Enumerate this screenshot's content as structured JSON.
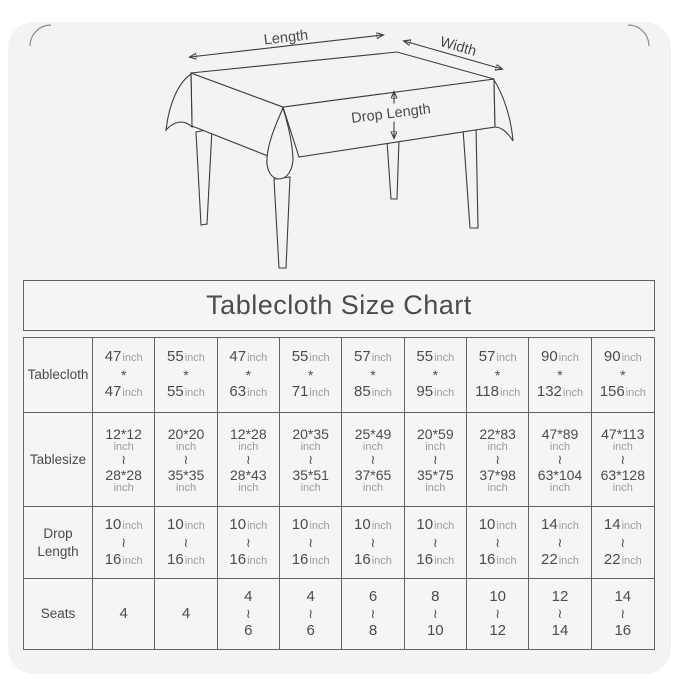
{
  "diagram": {
    "length_label": "Length",
    "width_label": "Width",
    "drop_label": "Drop Length"
  },
  "chart_data": {
    "type": "table",
    "title": "Tablecloth Size Chart",
    "row_headers": [
      "Tablecloth",
      "Tablesize",
      "Drop Length",
      "Seats"
    ],
    "rows": [
      {
        "header": "Tablecloth",
        "unit_style": "inline",
        "cells": [
          [
            "47inch",
            "*",
            "47inch"
          ],
          [
            "55inch",
            "*",
            "55inch"
          ],
          [
            "47inch",
            "*",
            "63inch"
          ],
          [
            "55inch",
            "*",
            "71inch"
          ],
          [
            "57inch",
            "*",
            "85inch"
          ],
          [
            "55inch",
            "*",
            "95inch"
          ],
          [
            "57inch",
            "*",
            "118inch"
          ],
          [
            "90inch",
            "*",
            "132inch"
          ],
          [
            "90inch",
            "*",
            "156inch"
          ]
        ]
      },
      {
        "header": "Tablesize",
        "unit_style": "below",
        "cells": [
          [
            "12*12inch",
            "~",
            "28*28inch"
          ],
          [
            "20*20inch",
            "~",
            "35*35inch"
          ],
          [
            "12*28inch",
            "~",
            "28*43inch"
          ],
          [
            "20*35inch",
            "~",
            "35*51inch"
          ],
          [
            "25*49inch",
            "~",
            "37*65inch"
          ],
          [
            "20*59inch",
            "~",
            "35*75inch"
          ],
          [
            "22*83inch",
            "~",
            "37*98inch"
          ],
          [
            "47*89inch",
            "~",
            "63*104inch"
          ],
          [
            "47*113inch",
            "~",
            "63*128inch"
          ]
        ]
      },
      {
        "header": "Drop Length",
        "unit_style": "inline",
        "cells": [
          [
            "10inch",
            "~",
            "16inch"
          ],
          [
            "10inch",
            "~",
            "16inch"
          ],
          [
            "10inch",
            "~",
            "16inch"
          ],
          [
            "10inch",
            "~",
            "16inch"
          ],
          [
            "10inch",
            "~",
            "16inch"
          ],
          [
            "10inch",
            "~",
            "16inch"
          ],
          [
            "10inch",
            "~",
            "16inch"
          ],
          [
            "14inch",
            "~",
            "22inch"
          ],
          [
            "14inch",
            "~",
            "22inch"
          ]
        ]
      },
      {
        "header": "Seats",
        "unit_style": "none",
        "cells": [
          [
            "4"
          ],
          [
            "4"
          ],
          [
            "4",
            "~",
            "6"
          ],
          [
            "4",
            "~",
            "6"
          ],
          [
            "6",
            "~",
            "8"
          ],
          [
            "8",
            "~",
            "10"
          ],
          [
            "10",
            "~",
            "12"
          ],
          [
            "12",
            "~",
            "14"
          ],
          [
            "14",
            "~",
            "16"
          ]
        ]
      }
    ]
  },
  "colors": {
    "page_bg": "#ffffff",
    "card_bg": "#f3f3f3",
    "table_bg": "#f5f5f5",
    "line_art": "#3d3d3d",
    "border": "#636363",
    "text": "#4c4c4c",
    "unit_text": "#9c9c9c"
  }
}
